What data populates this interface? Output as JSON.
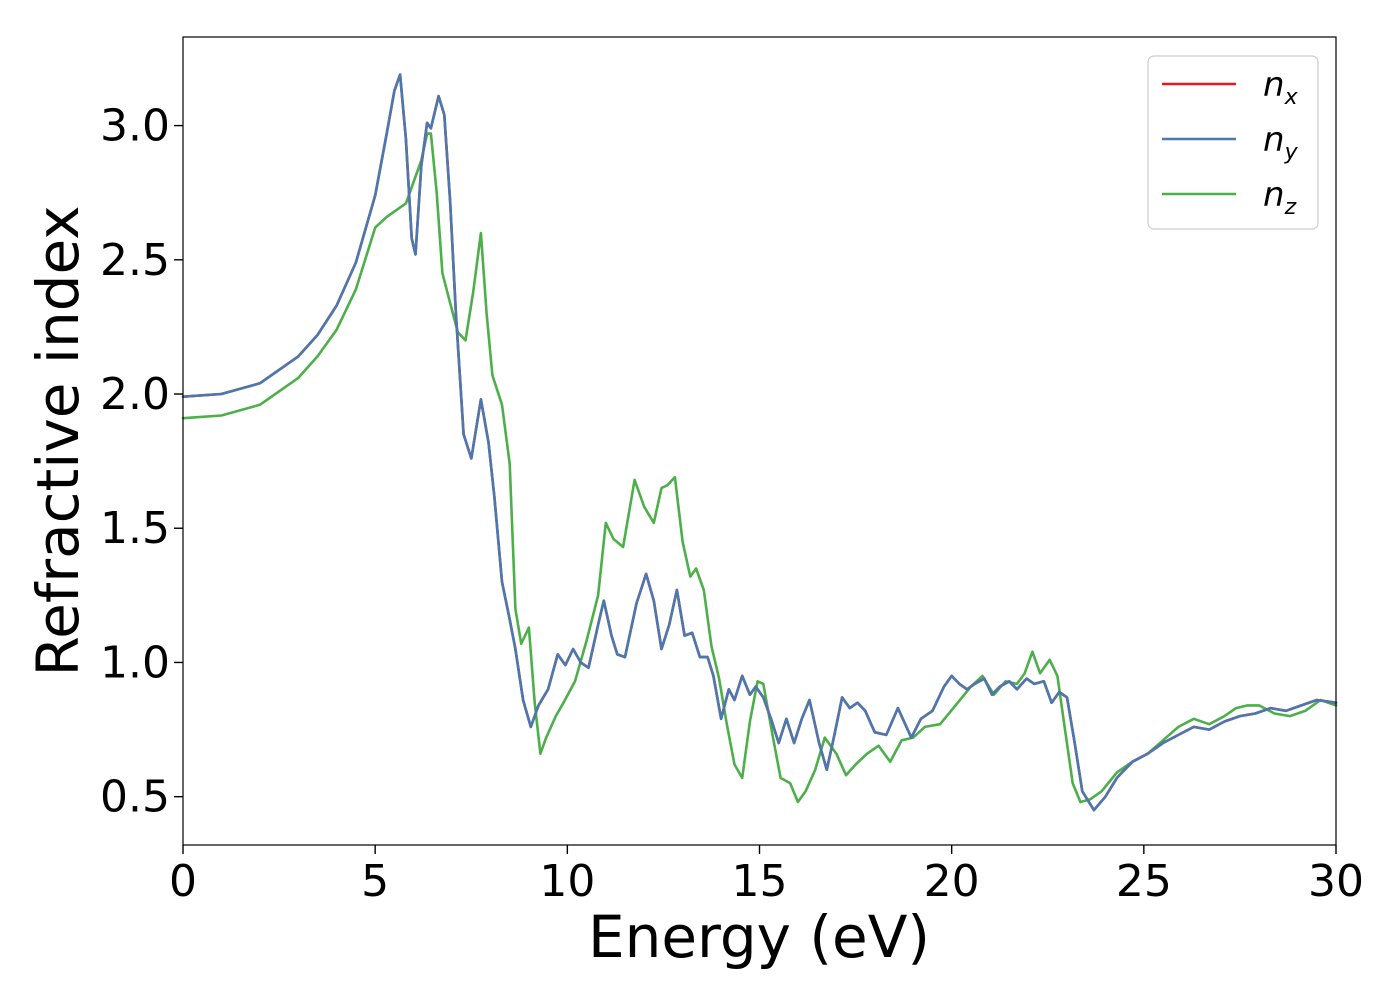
{
  "chart_data": {
    "type": "line",
    "title": "",
    "xlabel": "Energy (eV)",
    "ylabel": "Refractive index",
    "xlim": [
      0,
      30
    ],
    "ylim": [
      0.32,
      3.33
    ],
    "xticks": [
      0,
      5,
      10,
      15,
      20,
      25,
      30
    ],
    "xtick_labels": [
      "0",
      "5",
      "10",
      "15",
      "20",
      "25",
      "30"
    ],
    "yticks": [
      0.5,
      1.0,
      1.5,
      2.0,
      2.5,
      3.0
    ],
    "ytick_labels": [
      "0.5",
      "1.0",
      "1.5",
      "2.0",
      "2.5",
      "3.0"
    ],
    "grid": false,
    "legend": {
      "position": "top-right",
      "entries": [
        {
          "base": "n",
          "sub": "x",
          "color": "#e41a1c"
        },
        {
          "base": "n",
          "sub": "y",
          "color": "#4a78b0"
        },
        {
          "base": "n",
          "sub": "z",
          "color": "#4daf4a"
        }
      ]
    },
    "series": [
      {
        "name": "n_x",
        "color": "#e41a1c",
        "x": [
          0,
          1,
          2,
          3,
          3.5,
          4,
          4.5,
          5,
          5.3,
          5.5,
          5.65,
          5.8,
          5.95,
          6.05,
          6.2,
          6.35,
          6.45,
          6.65,
          6.8,
          6.95,
          7.1,
          7.3,
          7.5,
          7.75,
          7.95,
          8.1,
          8.3,
          8.5,
          8.65,
          8.85,
          9.05,
          9.25,
          9.5,
          9.75,
          9.95,
          10.15,
          10.35,
          10.55,
          10.8,
          10.95,
          11.15,
          11.3,
          11.5,
          11.8,
          12.05,
          12.25,
          12.45,
          12.65,
          12.85,
          13.05,
          13.25,
          13.45,
          13.65,
          13.8,
          14.0,
          14.2,
          14.35,
          14.55,
          14.75,
          14.9,
          15.1,
          15.3,
          15.5,
          15.7,
          15.9,
          16.1,
          16.3,
          16.55,
          16.75,
          16.95,
          17.15,
          17.35,
          17.55,
          17.75,
          18.0,
          18.3,
          18.6,
          18.95,
          19.2,
          19.5,
          19.8,
          20.0,
          20.2,
          20.4,
          20.6,
          20.85,
          21.05,
          21.25,
          21.5,
          21.7,
          21.95,
          22.15,
          22.4,
          22.6,
          22.8,
          23.0,
          23.2,
          23.4,
          23.7,
          24.0,
          24.3,
          24.7,
          25.1,
          25.5,
          25.9,
          26.3,
          26.7,
          27.1,
          27.5,
          27.9,
          28.3,
          28.7,
          29.1,
          29.5,
          30
        ],
        "y": [
          1.99,
          2.0,
          2.04,
          2.14,
          2.22,
          2.33,
          2.49,
          2.74,
          2.97,
          3.13,
          3.19,
          2.95,
          2.58,
          2.52,
          2.85,
          3.01,
          2.99,
          3.11,
          3.04,
          2.72,
          2.3,
          1.85,
          1.76,
          1.98,
          1.82,
          1.62,
          1.3,
          1.16,
          1.05,
          0.86,
          0.76,
          0.84,
          0.9,
          1.03,
          0.99,
          1.05,
          1.0,
          0.98,
          1.14,
          1.23,
          1.1,
          1.03,
          1.02,
          1.22,
          1.33,
          1.23,
          1.05,
          1.14,
          1.27,
          1.1,
          1.11,
          1.02,
          1.02,
          0.95,
          0.79,
          0.9,
          0.86,
          0.95,
          0.88,
          0.91,
          0.87,
          0.79,
          0.7,
          0.79,
          0.7,
          0.79,
          0.86,
          0.7,
          0.6,
          0.73,
          0.87,
          0.83,
          0.85,
          0.82,
          0.74,
          0.73,
          0.83,
          0.72,
          0.79,
          0.82,
          0.91,
          0.95,
          0.92,
          0.9,
          0.92,
          0.94,
          0.88,
          0.91,
          0.93,
          0.9,
          0.94,
          0.92,
          0.93,
          0.85,
          0.89,
          0.87,
          0.7,
          0.52,
          0.45,
          0.5,
          0.57,
          0.63,
          0.66,
          0.7,
          0.73,
          0.76,
          0.75,
          0.78,
          0.8,
          0.81,
          0.83,
          0.82,
          0.84,
          0.86,
          0.85
        ]
      },
      {
        "name": "n_y",
        "color": "#4a78b0",
        "x": [
          0,
          1,
          2,
          3,
          3.5,
          4,
          4.5,
          5,
          5.3,
          5.5,
          5.65,
          5.8,
          5.95,
          6.05,
          6.2,
          6.35,
          6.45,
          6.65,
          6.8,
          6.95,
          7.1,
          7.3,
          7.5,
          7.75,
          7.95,
          8.1,
          8.3,
          8.5,
          8.65,
          8.85,
          9.05,
          9.25,
          9.5,
          9.75,
          9.95,
          10.15,
          10.35,
          10.55,
          10.8,
          10.95,
          11.15,
          11.3,
          11.5,
          11.8,
          12.05,
          12.25,
          12.45,
          12.65,
          12.85,
          13.05,
          13.25,
          13.45,
          13.65,
          13.8,
          14.0,
          14.2,
          14.35,
          14.55,
          14.75,
          14.9,
          15.1,
          15.3,
          15.5,
          15.7,
          15.9,
          16.1,
          16.3,
          16.55,
          16.75,
          16.95,
          17.15,
          17.35,
          17.55,
          17.75,
          18.0,
          18.3,
          18.6,
          18.95,
          19.2,
          19.5,
          19.8,
          20.0,
          20.2,
          20.4,
          20.6,
          20.85,
          21.05,
          21.25,
          21.5,
          21.7,
          21.95,
          22.15,
          22.4,
          22.6,
          22.8,
          23.0,
          23.2,
          23.4,
          23.7,
          24.0,
          24.3,
          24.7,
          25.1,
          25.5,
          25.9,
          26.3,
          26.7,
          27.1,
          27.5,
          27.9,
          28.3,
          28.7,
          29.1,
          29.5,
          30
        ],
        "y": [
          1.99,
          2.0,
          2.04,
          2.14,
          2.22,
          2.33,
          2.49,
          2.74,
          2.97,
          3.13,
          3.19,
          2.95,
          2.58,
          2.52,
          2.85,
          3.01,
          2.99,
          3.11,
          3.04,
          2.72,
          2.3,
          1.85,
          1.76,
          1.98,
          1.82,
          1.62,
          1.3,
          1.16,
          1.05,
          0.86,
          0.76,
          0.84,
          0.9,
          1.03,
          0.99,
          1.05,
          1.0,
          0.98,
          1.14,
          1.23,
          1.1,
          1.03,
          1.02,
          1.22,
          1.33,
          1.23,
          1.05,
          1.14,
          1.27,
          1.1,
          1.11,
          1.02,
          1.02,
          0.95,
          0.79,
          0.9,
          0.86,
          0.95,
          0.88,
          0.91,
          0.87,
          0.79,
          0.7,
          0.79,
          0.7,
          0.79,
          0.86,
          0.7,
          0.6,
          0.73,
          0.87,
          0.83,
          0.85,
          0.82,
          0.74,
          0.73,
          0.83,
          0.72,
          0.79,
          0.82,
          0.91,
          0.95,
          0.92,
          0.9,
          0.92,
          0.94,
          0.88,
          0.91,
          0.93,
          0.9,
          0.94,
          0.92,
          0.93,
          0.85,
          0.89,
          0.87,
          0.7,
          0.52,
          0.45,
          0.5,
          0.57,
          0.63,
          0.66,
          0.7,
          0.73,
          0.76,
          0.75,
          0.78,
          0.8,
          0.81,
          0.83,
          0.82,
          0.84,
          0.86,
          0.85
        ]
      },
      {
        "name": "n_z",
        "color": "#4daf4a",
        "x": [
          0,
          1,
          2,
          3,
          3.5,
          4,
          4.5,
          5,
          5.3,
          5.6,
          5.8,
          6.0,
          6.2,
          6.35,
          6.45,
          6.6,
          6.75,
          6.95,
          7.15,
          7.35,
          7.55,
          7.75,
          7.9,
          8.05,
          8.3,
          8.5,
          8.65,
          8.8,
          9.0,
          9.15,
          9.3,
          9.45,
          9.7,
          9.9,
          10.2,
          10.5,
          10.8,
          11.0,
          11.2,
          11.45,
          11.75,
          12.0,
          12.25,
          12.45,
          12.6,
          12.8,
          13.0,
          13.2,
          13.35,
          13.55,
          13.75,
          13.95,
          14.15,
          14.35,
          14.55,
          14.75,
          14.95,
          15.1,
          15.35,
          15.55,
          15.8,
          16.0,
          16.2,
          16.45,
          16.7,
          17.0,
          17.25,
          17.5,
          17.8,
          18.1,
          18.4,
          18.7,
          19.0,
          19.3,
          19.7,
          20.1,
          20.5,
          20.8,
          21.1,
          21.4,
          21.7,
          21.9,
          22.1,
          22.3,
          22.55,
          22.75,
          22.95,
          23.15,
          23.35,
          23.6,
          23.9,
          24.3,
          24.7,
          25.1,
          25.5,
          25.9,
          26.3,
          26.7,
          27.1,
          27.4,
          27.7,
          28.0,
          28.4,
          28.8,
          29.2,
          29.6,
          30
        ],
        "y": [
          1.91,
          1.92,
          1.96,
          2.06,
          2.14,
          2.24,
          2.39,
          2.62,
          2.66,
          2.69,
          2.71,
          2.79,
          2.87,
          2.97,
          2.97,
          2.75,
          2.45,
          2.34,
          2.23,
          2.2,
          2.38,
          2.6,
          2.3,
          2.07,
          1.96,
          1.74,
          1.2,
          1.07,
          1.13,
          0.85,
          0.66,
          0.72,
          0.8,
          0.85,
          0.93,
          1.08,
          1.25,
          1.52,
          1.46,
          1.43,
          1.68,
          1.58,
          1.52,
          1.65,
          1.66,
          1.69,
          1.45,
          1.32,
          1.35,
          1.27,
          1.06,
          0.94,
          0.77,
          0.62,
          0.57,
          0.78,
          0.93,
          0.92,
          0.72,
          0.57,
          0.55,
          0.48,
          0.52,
          0.6,
          0.72,
          0.66,
          0.58,
          0.62,
          0.66,
          0.69,
          0.63,
          0.71,
          0.72,
          0.76,
          0.77,
          0.84,
          0.91,
          0.95,
          0.88,
          0.93,
          0.92,
          0.96,
          1.04,
          0.96,
          1.01,
          0.95,
          0.75,
          0.55,
          0.48,
          0.49,
          0.52,
          0.59,
          0.63,
          0.66,
          0.71,
          0.76,
          0.79,
          0.77,
          0.8,
          0.83,
          0.84,
          0.84,
          0.81,
          0.8,
          0.82,
          0.86,
          0.84
        ]
      }
    ]
  }
}
